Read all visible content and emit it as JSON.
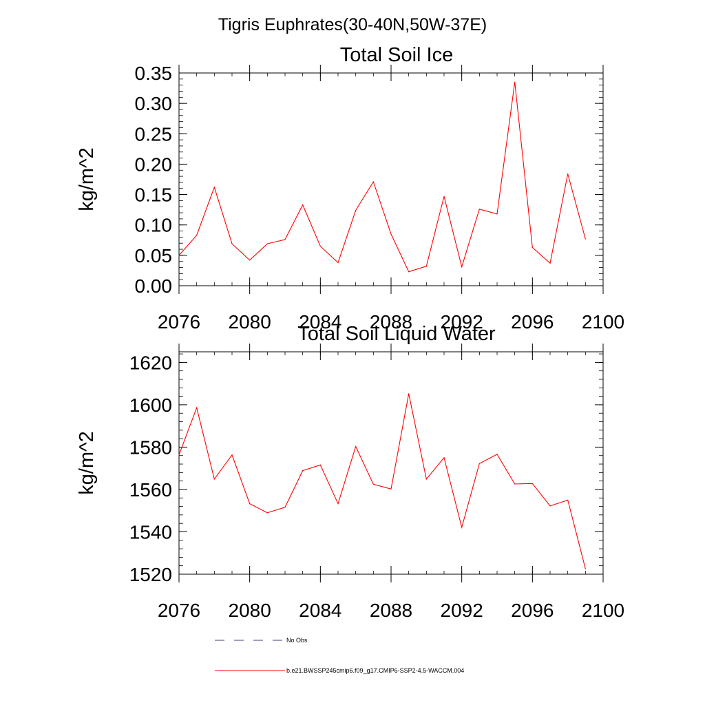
{
  "figure": {
    "suptitle": "Tigris Euphrates(30-40N,50W-37E)"
  },
  "chart_data": [
    {
      "type": "line",
      "title": "Total Soil Ice",
      "xlabel": "",
      "ylabel": "kg/m^2",
      "xlim": [
        2076,
        2100
      ],
      "ylim": [
        0,
        0.35
      ],
      "x_ticks": [
        2076,
        2080,
        2084,
        2088,
        2092,
        2096,
        2100
      ],
      "x_tick_labels": [
        "2076",
        "2080",
        "2084",
        "2088",
        "2092",
        "2096",
        "2100"
      ],
      "y_ticks": [
        0,
        0.05,
        0.1,
        0.15,
        0.2,
        0.25,
        0.3,
        0.35
      ],
      "y_tick_labels": [
        "0.00",
        "0.05",
        "0.10",
        "0.15",
        "0.20",
        "0.25",
        "0.30",
        "0.35"
      ],
      "grid": false,
      "series": [
        {
          "name": "b.e21.BWSSP245cmip6.f09_g17.CMIP6-SSP2-4.5-WACCM.004",
          "color": "#ff0000",
          "x": [
            2076,
            2077,
            2078,
            2079,
            2080,
            2081,
            2082,
            2083,
            2084,
            2085,
            2086,
            2087,
            2088,
            2089,
            2090,
            2091,
            2092,
            2093,
            2094,
            2095,
            2096,
            2097,
            2098,
            2099
          ],
          "y": [
            0.05,
            0.083,
            0.162,
            0.069,
            0.042,
            0.069,
            0.076,
            0.133,
            0.065,
            0.038,
            0.124,
            0.171,
            0.085,
            0.023,
            0.032,
            0.147,
            0.031,
            0.126,
            0.118,
            0.335,
            0.063,
            0.037,
            0.184,
            0.077
          ]
        }
      ]
    },
    {
      "type": "line",
      "title": "Total Soil Liquid Water",
      "xlabel": "",
      "ylabel": "kg/m^2",
      "xlim": [
        2076,
        2100
      ],
      "ylim": [
        1520,
        1625
      ],
      "x_ticks": [
        2076,
        2080,
        2084,
        2088,
        2092,
        2096,
        2100
      ],
      "x_tick_labels": [
        "2076",
        "2080",
        "2084",
        "2088",
        "2092",
        "2096",
        "2100"
      ],
      "y_ticks": [
        1520,
        1540,
        1560,
        1580,
        1600,
        1620
      ],
      "y_tick_labels": [
        "1520",
        "1540",
        "1560",
        "1580",
        "1600",
        "1620"
      ],
      "grid": false,
      "series": [
        {
          "name": "b.e21.BWSSP245cmip6.f09_g17.CMIP6-SSP2-4.5-WACCM.004",
          "color": "#ff0000",
          "x": [
            2076,
            2077,
            2078,
            2079,
            2080,
            2081,
            2082,
            2083,
            2084,
            2085,
            2086,
            2087,
            2088,
            2089,
            2090,
            2091,
            2092,
            2093,
            2094,
            2095,
            2096,
            2097,
            2098,
            2099
          ],
          "y": [
            1576.3,
            1598.6,
            1564.9,
            1576.3,
            1553.3,
            1549.0,
            1551.6,
            1568.9,
            1571.6,
            1553.3,
            1580.3,
            1562.5,
            1560.2,
            1605.2,
            1564.9,
            1575.0,
            1542.1,
            1572.2,
            1576.6,
            1562.6,
            1562.8,
            1552.2,
            1555.0,
            1522.6
          ]
        }
      ]
    }
  ],
  "legend": {
    "placement": "bottom",
    "entries": [
      {
        "label": "No Obs",
        "style": "dashed",
        "color": "#3c3c78"
      },
      {
        "label": "b.e21.BWSSP245cmip6.f09_g17.CMIP6-SSP2-4.5-WACCM.004",
        "style": "solid",
        "color": "#ff0000"
      }
    ]
  }
}
